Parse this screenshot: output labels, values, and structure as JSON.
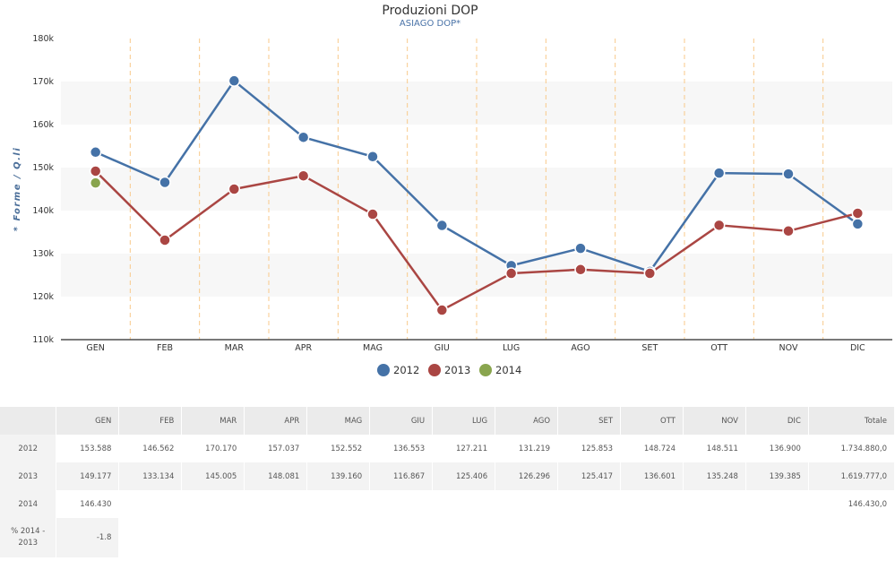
{
  "chart_data": {
    "type": "line",
    "title": "Produzioni DOP",
    "subtitle": "ASIAGO DOP*",
    "ylabel": "* Forme / Q.li",
    "xlabel": "",
    "categories": [
      "GEN",
      "FEB",
      "MAR",
      "APR",
      "MAG",
      "GIU",
      "LUG",
      "AGO",
      "SET",
      "OTT",
      "NOV",
      "DIC"
    ],
    "ylim": [
      110000,
      180000
    ],
    "yticks": [
      {
        "value": 110000,
        "label": "110k"
      },
      {
        "value": 120000,
        "label": "120k"
      },
      {
        "value": 130000,
        "label": "130k"
      },
      {
        "value": 140000,
        "label": "140k"
      },
      {
        "value": 150000,
        "label": "150k"
      },
      {
        "value": 160000,
        "label": "160k"
      },
      {
        "value": 170000,
        "label": "170k"
      },
      {
        "value": 180000,
        "label": "180k"
      }
    ],
    "grid": "alternating horizontal bands, dashed vertical lines",
    "legend": "bottom-center",
    "series": [
      {
        "name": "2012",
        "color": "#4572a7",
        "values": [
          153588,
          146562,
          170170,
          157037,
          152552,
          136553,
          127211,
          131219,
          125853,
          148724,
          148511,
          136900
        ]
      },
      {
        "name": "2013",
        "color": "#aa4643",
        "values": [
          149177,
          133134,
          145005,
          148081,
          139160,
          116867,
          125406,
          126296,
          125417,
          136601,
          135248,
          139385
        ]
      },
      {
        "name": "2014",
        "color": "#89a54e",
        "values": [
          146430,
          null,
          null,
          null,
          null,
          null,
          null,
          null,
          null,
          null,
          null,
          null
        ]
      }
    ]
  },
  "table": {
    "header": [
      "",
      "GEN",
      "FEB",
      "MAR",
      "APR",
      "MAG",
      "GIU",
      "LUG",
      "AGO",
      "SET",
      "OTT",
      "NOV",
      "DIC",
      "Totale"
    ],
    "rows": [
      {
        "label": "2012",
        "cells": [
          "153.588",
          "146.562",
          "170.170",
          "157.037",
          "152.552",
          "136.553",
          "127.211",
          "131.219",
          "125.853",
          "148.724",
          "148.511",
          "136.900",
          "1.734.880,0"
        ]
      },
      {
        "label": "2013",
        "cells": [
          "149.177",
          "133.134",
          "145.005",
          "148.081",
          "139.160",
          "116.867",
          "125.406",
          "126.296",
          "125.417",
          "136.601",
          "135.248",
          "139.385",
          "1.619.777,0"
        ]
      },
      {
        "label": "2014",
        "cells": [
          "146.430",
          "",
          "",
          "",
          "",
          "",
          "",
          "",
          "",
          "",
          "",
          "",
          "146.430,0"
        ]
      },
      {
        "label": "% 2014 - 2013",
        "cells": [
          "-1.8"
        ]
      }
    ]
  }
}
